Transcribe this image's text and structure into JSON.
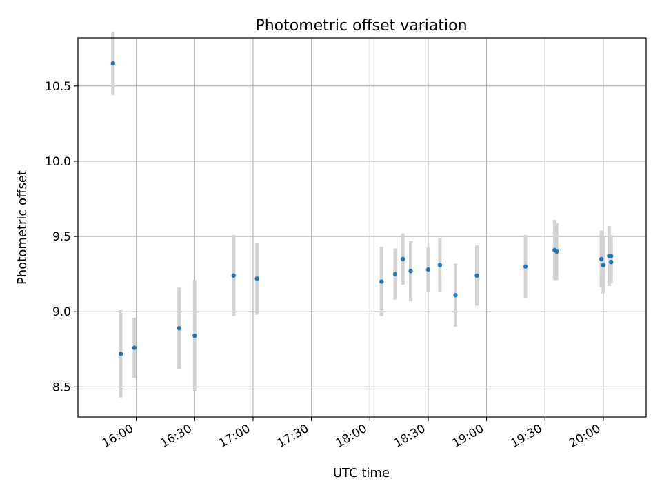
{
  "chart_data": {
    "type": "scatter",
    "title": "Photometric offset variation",
    "xlabel": "UTC time",
    "ylabel": "Photometric offset",
    "x_ticks": [
      "16:00",
      "16:30",
      "17:00",
      "17:30",
      "18:00",
      "18:30",
      "19:00",
      "19:30",
      "20:00"
    ],
    "y_ticks": [
      "8.5",
      "9.0",
      "9.5",
      "10.0",
      "10.5"
    ],
    "xlim": [
      "15:30",
      "20:22"
    ],
    "ylim": [
      8.3,
      10.82
    ],
    "grid": true,
    "colors": {
      "points": "#1f77b4",
      "errorbars": "#d3d3d3",
      "grid": "#b0b0b0"
    },
    "series": [
      {
        "points": [
          {
            "x": "15:48",
            "y": 10.65,
            "err": 0.21
          },
          {
            "x": "15:52",
            "y": 8.72,
            "err": 0.29
          },
          {
            "x": "15:59",
            "y": 8.76,
            "err": 0.2
          },
          {
            "x": "16:22",
            "y": 8.89,
            "err": 0.27
          },
          {
            "x": "16:30",
            "y": 8.84,
            "err": 0.37
          },
          {
            "x": "16:50",
            "y": 9.24,
            "err": 0.27
          },
          {
            "x": "17:02",
            "y": 9.22,
            "err": 0.24
          },
          {
            "x": "18:06",
            "y": 9.2,
            "err": 0.23
          },
          {
            "x": "18:13",
            "y": 9.25,
            "err": 0.17
          },
          {
            "x": "18:17",
            "y": 9.35,
            "err": 0.17
          },
          {
            "x": "18:21",
            "y": 9.27,
            "err": 0.2
          },
          {
            "x": "18:30",
            "y": 9.28,
            "err": 0.15
          },
          {
            "x": "18:36",
            "y": 9.31,
            "err": 0.18
          },
          {
            "x": "18:44",
            "y": 9.11,
            "err": 0.21
          },
          {
            "x": "18:55",
            "y": 9.24,
            "err": 0.2
          },
          {
            "x": "19:20",
            "y": 9.3,
            "err": 0.21
          },
          {
            "x": "19:35",
            "y": 9.41,
            "err": 0.2
          },
          {
            "x": "19:36",
            "y": 9.4,
            "err": 0.19
          },
          {
            "x": "19:59",
            "y": 9.35,
            "err": 0.19
          },
          {
            "x": "20:00",
            "y": 9.31,
            "err": 0.19
          },
          {
            "x": "20:03",
            "y": 9.37,
            "err": 0.2
          },
          {
            "x": "20:04",
            "y": 9.37,
            "err": 0.14
          },
          {
            "x": "20:04",
            "y": 9.33,
            "err": 0.14
          }
        ]
      }
    ]
  }
}
